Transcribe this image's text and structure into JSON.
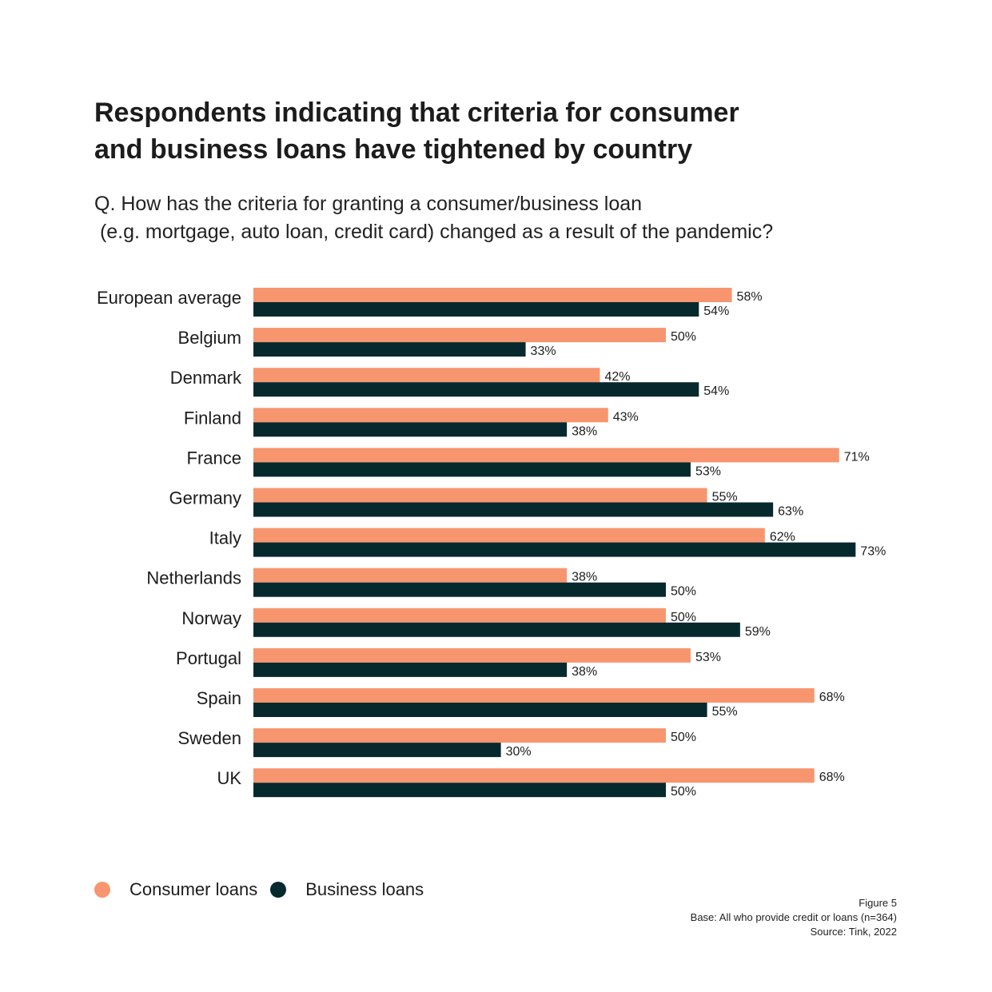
{
  "title": {
    "line1": "Respondents indicating that criteria for consumer",
    "line2": "and business loans have tightened by country"
  },
  "question": {
    "line1": "Q. How has the criteria for granting a consumer/business loan",
    "line2": " (e.g. mortgage, auto loan, credit card) changed as a result of the pandemic?"
  },
  "colors": {
    "consumer": "#F7956F",
    "business": "#06292D",
    "text": "#1C1C1C"
  },
  "chart_data": {
    "type": "bar",
    "orientation": "horizontal",
    "categories": [
      "European average",
      "Belgium",
      "Denmark",
      "Finland",
      "France",
      "Germany",
      "Italy",
      "Netherlands",
      "Norway",
      "Portugal",
      "Spain",
      "Sweden",
      "UK"
    ],
    "series": [
      {
        "name": "Consumer loans",
        "color": "#F7956F",
        "values": [
          58,
          50,
          42,
          43,
          71,
          55,
          62,
          38,
          50,
          53,
          68,
          50,
          68
        ],
        "labels": [
          "58%",
          "50%",
          "42%",
          "43%",
          "71%",
          "55%",
          "62%",
          "38%",
          "50%",
          "53%",
          "68%",
          "50%",
          "68%"
        ]
      },
      {
        "name": "Business loans",
        "color": "#06292D",
        "values": [
          54,
          33,
          54,
          38,
          53,
          63,
          73,
          50,
          59,
          38,
          55,
          30,
          50
        ],
        "labels": [
          "54%",
          "33%",
          "54%",
          "38%",
          "53%",
          "63%",
          "73%",
          "50%",
          "59%",
          "38%",
          "55%",
          "30%",
          "50%"
        ]
      }
    ],
    "unit": "%",
    "xlim": [
      0,
      100
    ],
    "grid": false,
    "legend_position": "bottom-left"
  },
  "legend": {
    "consumer_label": "Consumer loans",
    "business_label": "Business loans"
  },
  "footnote": {
    "figure": "Figure 5",
    "base": "Base: All who provide credit or loans (n=364)",
    "source": "Source: Tink, 2022"
  }
}
